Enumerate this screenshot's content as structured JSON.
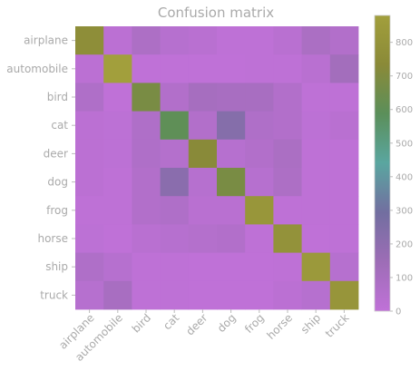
{
  "chart_data": {
    "type": "heatmap",
    "title": "Confusion matrix",
    "xlabel": "",
    "ylabel": "",
    "x_categories": [
      "airplane",
      "automobile",
      "bird",
      "cat",
      "deer",
      "dog",
      "frog",
      "horse",
      "ship",
      "truck"
    ],
    "y_categories": [
      "airplane",
      "automobile",
      "bird",
      "cat",
      "deer",
      "dog",
      "frog",
      "horse",
      "ship",
      "truck"
    ],
    "values": [
      [
        760,
        20,
        80,
        40,
        30,
        10,
        10,
        30,
        90,
        60
      ],
      [
        20,
        880,
        5,
        5,
        5,
        5,
        10,
        10,
        30,
        120
      ],
      [
        70,
        5,
        680,
        60,
        110,
        100,
        100,
        60,
        10,
        10
      ],
      [
        20,
        15,
        70,
        600,
        60,
        230,
        70,
        60,
        15,
        30
      ],
      [
        20,
        15,
        70,
        50,
        730,
        40,
        60,
        90,
        10,
        10
      ],
      [
        20,
        10,
        60,
        210,
        40,
        680,
        40,
        80,
        10,
        10
      ],
      [
        10,
        10,
        60,
        70,
        30,
        30,
        820,
        10,
        10,
        10
      ],
      [
        15,
        5,
        30,
        40,
        50,
        60,
        10,
        790,
        5,
        10
      ],
      [
        70,
        40,
        10,
        10,
        5,
        5,
        5,
        10,
        840,
        40
      ],
      [
        40,
        100,
        10,
        10,
        5,
        5,
        5,
        20,
        40,
        810
      ]
    ],
    "colorbar": {
      "min": 0,
      "max": 880,
      "ticks": [
        0,
        100,
        200,
        300,
        400,
        500,
        600,
        700,
        800
      ]
    },
    "colormap": [
      "#c071d8",
      "#9d6db6",
      "#726ea0",
      "#5aa6a0",
      "#5b8f5a",
      "#8a8a38",
      "#a29f3c"
    ],
    "grid": false,
    "legend": "colorbar-right"
  }
}
